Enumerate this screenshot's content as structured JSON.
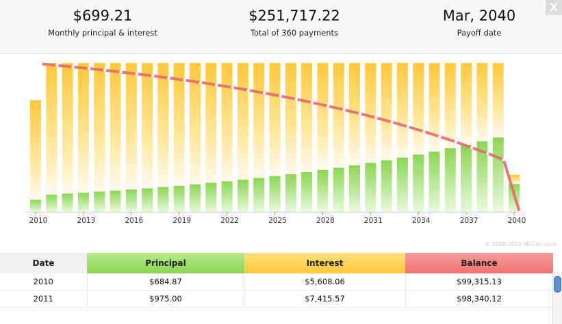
{
  "summary": {
    "payment": {
      "value": "$699.21",
      "label": "Monthly principal & interest"
    },
    "total": {
      "value": "$251,717.22",
      "label": "Total of 360 payments"
    },
    "payoff": {
      "value": "Mar, 2040",
      "label": "Payoff date"
    }
  },
  "close_label": "X",
  "copyright": "© 2008-2010 MLCalc.com",
  "colors": {
    "principal": "#8ed85a",
    "interest": "#ffca3f",
    "balance": "#e86a6a"
  },
  "chart_data": {
    "type": "bar",
    "x_ticks": [
      "2010",
      "2013",
      "2016",
      "2019",
      "2022",
      "2025",
      "2028",
      "2031",
      "2034",
      "2037",
      "2040"
    ],
    "years": [
      2010,
      2011,
      2012,
      2013,
      2014,
      2015,
      2016,
      2017,
      2018,
      2019,
      2020,
      2021,
      2022,
      2023,
      2024,
      2025,
      2026,
      2027,
      2028,
      2029,
      2030,
      2031,
      2032,
      2033,
      2034,
      2035,
      2036,
      2037,
      2038,
      2039,
      2040
    ],
    "series": [
      {
        "name": "Principal",
        "values": [
          684.87,
          975,
          1030,
          1085,
          1140,
          1200,
          1265,
          1330,
          1400,
          1475,
          1555,
          1640,
          1725,
          1820,
          1915,
          2020,
          2125,
          2240,
          2360,
          2490,
          2620,
          2760,
          2910,
          3065,
          3230,
          3400,
          3585,
          3775,
          3980,
          4195,
          1570
        ]
      },
      {
        "name": "Interest",
        "values": [
          5608.06,
          7415.57,
          7360,
          7305,
          7250,
          7190,
          7125,
          7060,
          6990,
          6915,
          6835,
          6750,
          6665,
          6570,
          6475,
          6370,
          6265,
          6150,
          6030,
          5900,
          5770,
          5630,
          5480,
          5325,
          5160,
          4990,
          4805,
          4615,
          4410,
          4195,
          525
        ]
      },
      {
        "name": "Balance",
        "values": [
          99315.13,
          98340.12,
          97310,
          96225,
          95085,
          93885,
          92620,
          91290,
          89890,
          88415,
          86860,
          85220,
          83495,
          81675,
          79760,
          77740,
          75615,
          73375,
          71015,
          68525,
          65905,
          63145,
          60235,
          57170,
          53940,
          50540,
          46955,
          43180,
          39200,
          35005,
          0
        ]
      }
    ]
  },
  "table": {
    "headers": [
      "Date",
      "Principal",
      "Interest",
      "Balance"
    ],
    "rows": [
      {
        "date": "2010",
        "principal": "$684.87",
        "interest": "$5,608.06",
        "balance": "$99,315.13"
      },
      {
        "date": "2011",
        "principal": "$975.00",
        "interest": "$7,415.57",
        "balance": "$98,340.12"
      }
    ]
  }
}
